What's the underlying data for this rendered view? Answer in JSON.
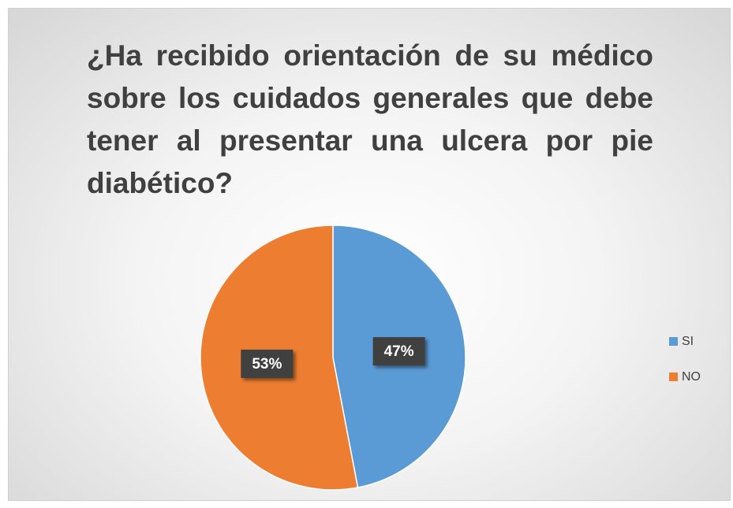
{
  "chart_data": {
    "type": "pie",
    "title": "¿Ha recibido orientación de su médico sobre los cuidados generales que debe tener al presentar una ulcera por pie diabético?",
    "categories": [
      "SI",
      "NO"
    ],
    "values": [
      47,
      53
    ],
    "value_labels": [
      "47%",
      "53%"
    ],
    "colors": [
      "#5b9bd5",
      "#ed7d31"
    ],
    "legend": "right"
  }
}
